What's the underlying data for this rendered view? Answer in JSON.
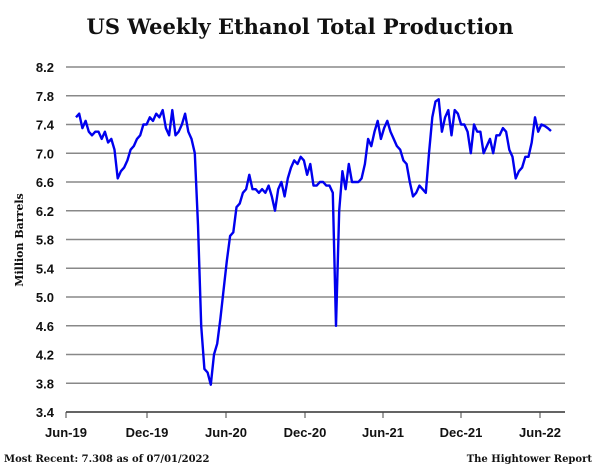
{
  "chart_data": {
    "type": "line",
    "title": "US Weekly Ethanol Total Production",
    "xlabel": "",
    "ylabel": "Million Barrels",
    "ylim": [
      3.4,
      8.2
    ],
    "yticks": [
      "8.2",
      "7.8",
      "7.4",
      "7.0",
      "6.6",
      "6.2",
      "5.8",
      "5.4",
      "5.0",
      "4.6",
      "4.2",
      "3.8",
      "3.4"
    ],
    "xticks": [
      "Jun-19",
      "Dec-19",
      "Jun-20",
      "Dec-20",
      "Jun-21",
      "Dec-21",
      "Jun-22"
    ],
    "grid": true,
    "x_note": "weekly observations, mid-Jun 2019 to 07/01/2022",
    "series": [
      {
        "name": "US Weekly Ethanol Total Production",
        "color": "#0000ee",
        "values": [
          7.5,
          7.55,
          7.35,
          7.45,
          7.3,
          7.25,
          7.3,
          7.3,
          7.2,
          7.3,
          7.15,
          7.2,
          7.05,
          6.65,
          6.75,
          6.8,
          6.9,
          7.05,
          7.1,
          7.2,
          7.25,
          7.4,
          7.4,
          7.5,
          7.45,
          7.55,
          7.5,
          7.6,
          7.35,
          7.25,
          7.6,
          7.25,
          7.3,
          7.4,
          7.55,
          7.3,
          7.2,
          7.0,
          6.0,
          4.6,
          4.0,
          3.95,
          3.78,
          4.2,
          4.35,
          4.7,
          5.1,
          5.5,
          5.85,
          5.9,
          6.25,
          6.3,
          6.45,
          6.5,
          6.7,
          6.5,
          6.5,
          6.45,
          6.5,
          6.45,
          6.55,
          6.4,
          6.2,
          6.5,
          6.6,
          6.4,
          6.65,
          6.8,
          6.9,
          6.85,
          6.95,
          6.9,
          6.7,
          6.85,
          6.55,
          6.55,
          6.6,
          6.6,
          6.55,
          6.55,
          6.45,
          4.6,
          6.2,
          6.75,
          6.5,
          6.85,
          6.6,
          6.6,
          6.6,
          6.65,
          6.85,
          7.2,
          7.1,
          7.3,
          7.45,
          7.2,
          7.35,
          7.45,
          7.3,
          7.2,
          7.1,
          7.05,
          6.9,
          6.85,
          6.6,
          6.4,
          6.45,
          6.55,
          6.5,
          6.45,
          7.0,
          7.5,
          7.72,
          7.75,
          7.3,
          7.5,
          7.6,
          7.25,
          7.6,
          7.55,
          7.4,
          7.4,
          7.3,
          7.0,
          7.4,
          7.3,
          7.3,
          7.0,
          7.1,
          7.2,
          7.0,
          7.25,
          7.25,
          7.35,
          7.3,
          7.05,
          6.95,
          6.65,
          6.75,
          6.8,
          6.95,
          6.95,
          7.15,
          7.5,
          7.3,
          7.4,
          7.38,
          7.35,
          7.31
        ]
      }
    ]
  },
  "footer": {
    "most_recent": "Most Recent: 7.308 as of 07/01/2022",
    "source": "The Hightower Report"
  }
}
